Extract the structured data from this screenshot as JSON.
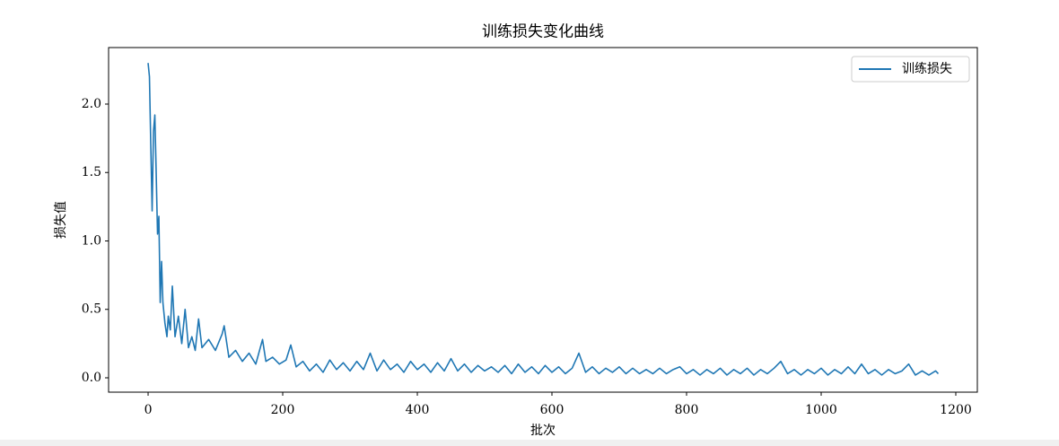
{
  "chart_data": {
    "type": "line",
    "title": "训练损失变化曲线",
    "x_label": "批次",
    "y_label": "损失值",
    "series": [
      {
        "name": "训练损失",
        "color": "#1f77b4",
        "x": [
          0,
          2,
          4,
          6,
          8,
          10,
          12,
          14,
          16,
          18,
          20,
          22,
          25,
          28,
          30,
          33,
          36,
          40,
          45,
          50,
          55,
          60,
          65,
          70,
          75,
          80,
          90,
          100,
          110,
          113,
          120,
          130,
          140,
          150,
          160,
          170,
          175,
          185,
          195,
          205,
          212,
          220,
          230,
          240,
          250,
          260,
          270,
          280,
          290,
          300,
          310,
          320,
          330,
          340,
          350,
          360,
          370,
          380,
          390,
          400,
          410,
          420,
          430,
          440,
          450,
          460,
          470,
          480,
          490,
          500,
          510,
          520,
          530,
          540,
          550,
          560,
          570,
          580,
          590,
          600,
          610,
          620,
          630,
          640,
          650,
          660,
          670,
          680,
          690,
          700,
          710,
          720,
          730,
          740,
          750,
          760,
          770,
          780,
          790,
          800,
          810,
          820,
          830,
          840,
          850,
          860,
          870,
          880,
          890,
          900,
          910,
          920,
          930,
          940,
          950,
          960,
          970,
          980,
          990,
          1000,
          1010,
          1020,
          1030,
          1040,
          1050,
          1060,
          1070,
          1080,
          1090,
          1100,
          1110,
          1120,
          1130,
          1140,
          1150,
          1160,
          1170,
          1174
        ],
        "values": [
          2.3,
          2.2,
          1.7,
          1.22,
          1.8,
          1.92,
          1.5,
          1.05,
          1.18,
          0.55,
          0.85,
          0.55,
          0.4,
          0.3,
          0.45,
          0.35,
          0.67,
          0.3,
          0.45,
          0.25,
          0.5,
          0.22,
          0.3,
          0.2,
          0.43,
          0.22,
          0.28,
          0.2,
          0.32,
          0.38,
          0.15,
          0.2,
          0.12,
          0.18,
          0.1,
          0.28,
          0.12,
          0.15,
          0.1,
          0.13,
          0.24,
          0.08,
          0.12,
          0.05,
          0.1,
          0.04,
          0.13,
          0.06,
          0.11,
          0.05,
          0.12,
          0.06,
          0.18,
          0.05,
          0.13,
          0.06,
          0.1,
          0.04,
          0.12,
          0.06,
          0.1,
          0.04,
          0.11,
          0.05,
          0.14,
          0.05,
          0.1,
          0.04,
          0.09,
          0.05,
          0.08,
          0.04,
          0.09,
          0.03,
          0.1,
          0.04,
          0.08,
          0.03,
          0.09,
          0.04,
          0.08,
          0.03,
          0.07,
          0.18,
          0.04,
          0.08,
          0.03,
          0.07,
          0.04,
          0.08,
          0.03,
          0.07,
          0.03,
          0.06,
          0.03,
          0.07,
          0.03,
          0.06,
          0.08,
          0.03,
          0.06,
          0.02,
          0.06,
          0.03,
          0.07,
          0.02,
          0.06,
          0.03,
          0.07,
          0.02,
          0.06,
          0.03,
          0.07,
          0.12,
          0.03,
          0.06,
          0.02,
          0.06,
          0.03,
          0.07,
          0.02,
          0.06,
          0.03,
          0.08,
          0.03,
          0.1,
          0.03,
          0.06,
          0.02,
          0.06,
          0.03,
          0.05,
          0.1,
          0.02,
          0.05,
          0.02,
          0.05,
          0.03
        ]
      }
    ],
    "xlim": [
      -58.7,
      1232
    ],
    "xticks": [
      0,
      200,
      400,
      600,
      800,
      1000,
      1200
    ],
    "ylim": [
      -0.105,
      2.413
    ],
    "yticks": [
      {
        "value": 0,
        "label": "0.0"
      },
      0.5,
      {
        "value": 1,
        "label": "1.0"
      },
      1.5,
      {
        "value": 2,
        "label": "2.0"
      }
    ],
    "legend": "upper right"
  }
}
